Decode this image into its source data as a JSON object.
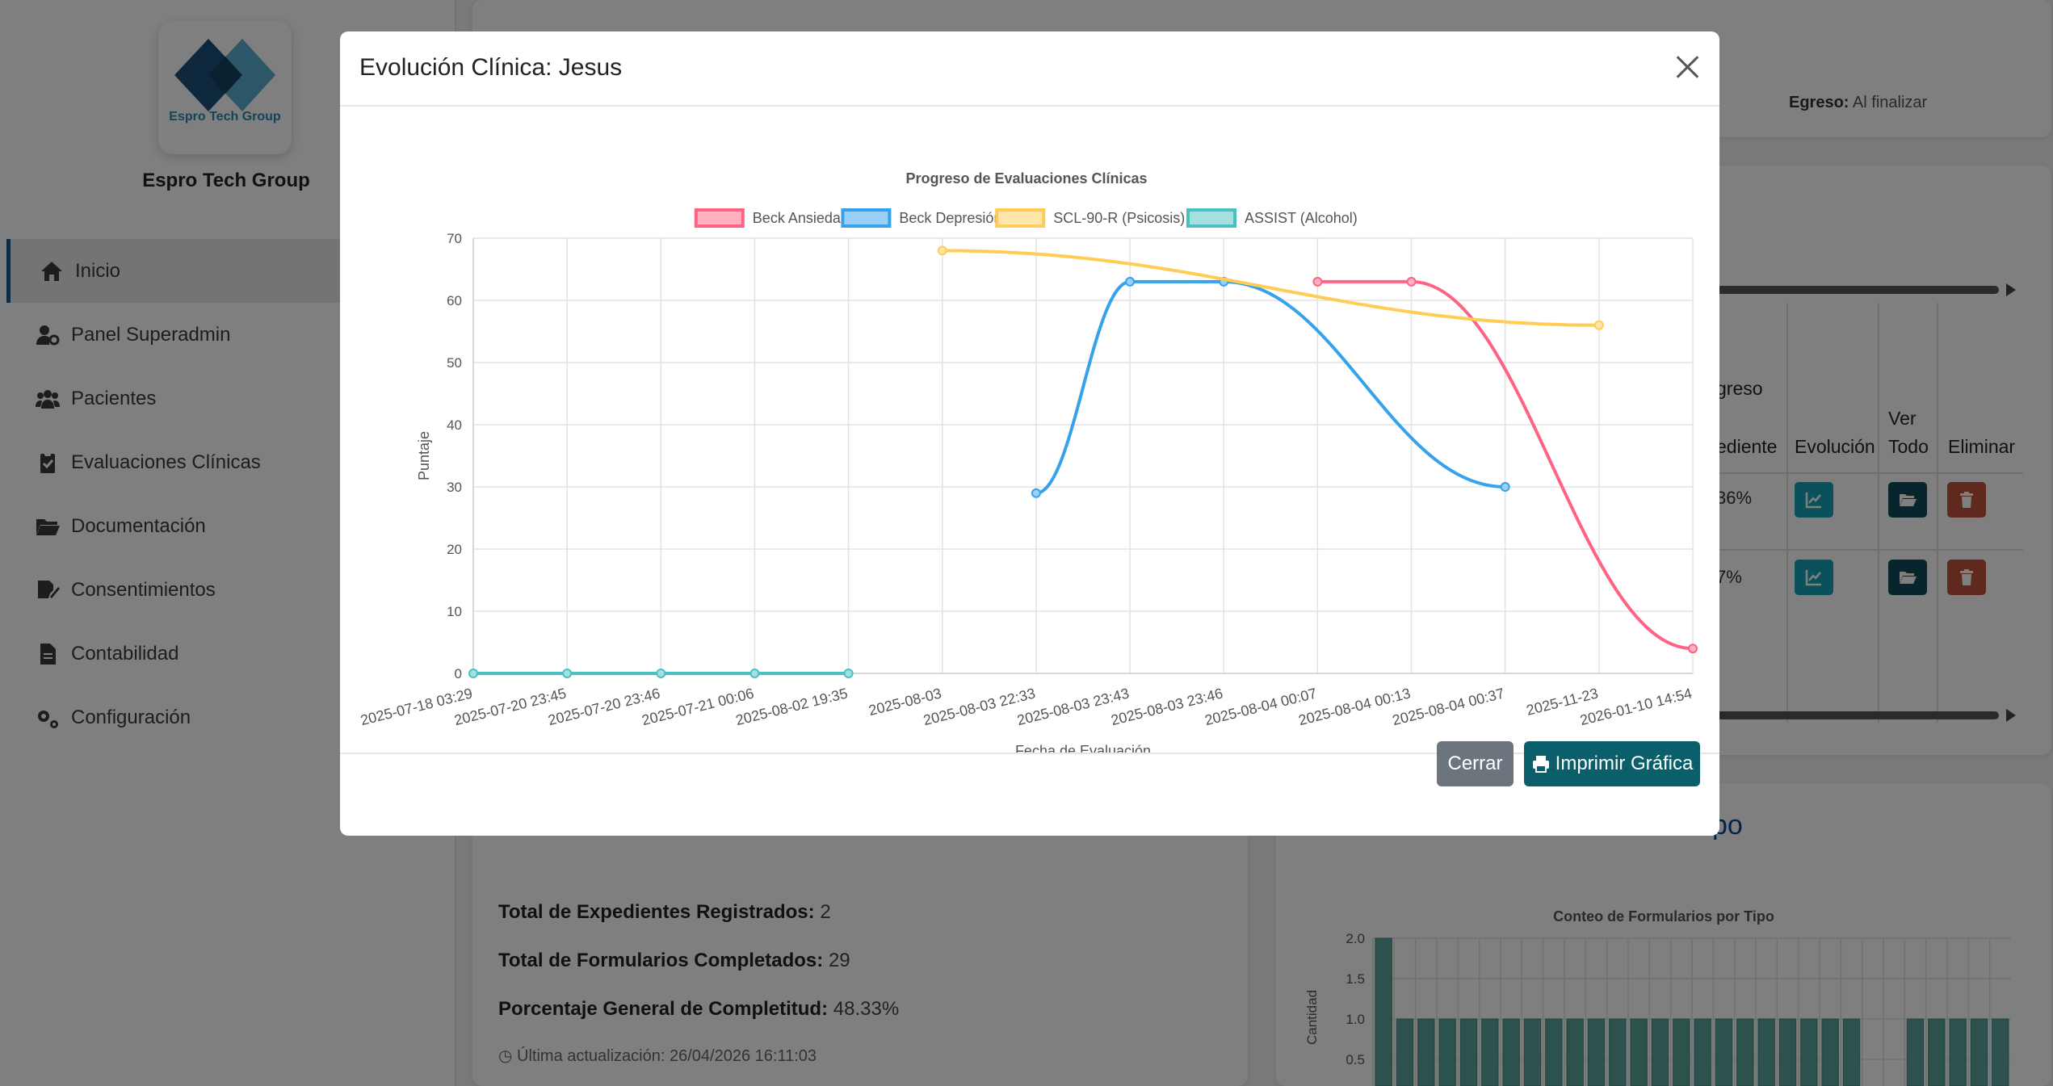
{
  "brand": {
    "logo_text": "Espro Tech Group",
    "name": "Espro Tech Group"
  },
  "sidebar": {
    "items": [
      {
        "label": "Inicio",
        "icon": "home-icon",
        "active": true
      },
      {
        "label": "Panel Superadmin",
        "icon": "user-gear-icon",
        "active": false
      },
      {
        "label": "Pacientes",
        "icon": "users-icon",
        "active": false
      },
      {
        "label": "Evaluaciones Clínicas",
        "icon": "clipboard-icon",
        "active": false
      },
      {
        "label": "Documentación",
        "icon": "folder-icon",
        "active": false
      },
      {
        "label": "Consentimientos",
        "icon": "signature-icon",
        "active": false
      },
      {
        "label": "Contabilidad",
        "icon": "document-icon",
        "active": false
      },
      {
        "label": "Configuración",
        "icon": "gears-icon",
        "active": false
      }
    ]
  },
  "background": {
    "egreso_label": "Egreso:",
    "egreso_value": "Al finalizar",
    "table": {
      "headers": [
        "greso",
        "ediente",
        "Evolución",
        "Ver",
        "Todo",
        "Eliminar"
      ],
      "rows": [
        {
          "progress": "36%"
        },
        {
          "progress": "7%"
        }
      ]
    },
    "stats": {
      "total_expedientes_label": "Total de Expedientes Registrados:",
      "total_expedientes_value": "2",
      "total_formularios_label": "Total de Formularios Completados:",
      "total_formularios_value": "29",
      "porcentaje_label": "Porcentaje General de Completitud:",
      "porcentaje_value": "48.33%",
      "last_update": "Última actualización: 26/04/2026 16:11:03"
    },
    "peek_title_right": "po",
    "bar_chart": {
      "title": "Conteo de Formularios por Tipo",
      "ylabel": "Cantidad",
      "yticks": [
        "2.0",
        "1.5",
        "1.0",
        "0.5"
      ],
      "values": [
        2,
        1,
        1,
        1,
        1,
        1,
        1,
        1,
        1,
        1,
        1,
        1,
        1,
        1,
        1,
        1,
        1,
        1,
        1,
        1,
        1,
        1,
        1,
        0,
        0,
        1,
        1,
        1,
        1,
        1
      ],
      "ylim": [
        0.5,
        2.0
      ],
      "color": "#5aa39b"
    }
  },
  "modal": {
    "title": "Evolución Clínica: Jesus",
    "close_label": "Cerrar",
    "print_label": "Imprimir Gráfica"
  },
  "chart_data": {
    "type": "line",
    "title": "Progreso de Evaluaciones Clínicas",
    "xlabel": "Fecha de Evaluación",
    "ylabel": "Puntaje",
    "ylim": [
      0,
      70
    ],
    "yticks": [
      0,
      10,
      20,
      30,
      40,
      50,
      60,
      70
    ],
    "grid": true,
    "legend_position": "top",
    "categories": [
      "2025-07-18 03:29",
      "2025-07-20 23:45",
      "2025-07-20 23:46",
      "2025-07-21 00:06",
      "2025-08-02 19:35",
      "2025-08-03",
      "2025-08-03 22:33",
      "2025-08-03 23:43",
      "2025-08-03 23:46",
      "2025-08-04 00:07",
      "2025-08-04 00:13",
      "2025-08-04 00:37",
      "2025-11-23",
      "2026-01-10 14:54"
    ],
    "series": [
      {
        "name": "Beck Ansiedad",
        "color": "#ff6384",
        "fill": "#ffb1c1",
        "values": [
          null,
          null,
          null,
          null,
          null,
          null,
          null,
          null,
          null,
          63,
          63,
          null,
          null,
          4
        ]
      },
      {
        "name": "Beck Depresión",
        "color": "#36a2eb",
        "fill": "#9ad0f5",
        "values": [
          null,
          null,
          null,
          null,
          null,
          null,
          29,
          63,
          63,
          null,
          null,
          30,
          null,
          null
        ]
      },
      {
        "name": "SCL-90-R (Psicosis)",
        "color": "#ffcd56",
        "fill": "#ffe6aa",
        "values": [
          null,
          null,
          null,
          null,
          null,
          68,
          null,
          null,
          null,
          null,
          null,
          null,
          56,
          null
        ]
      },
      {
        "name": "ASSIST (Alcohol)",
        "color": "#4bc0c0",
        "fill": "#a5dfdf",
        "values": [
          0,
          0,
          0,
          0,
          0,
          null,
          null,
          null,
          null,
          null,
          null,
          null,
          null,
          null
        ]
      }
    ]
  }
}
